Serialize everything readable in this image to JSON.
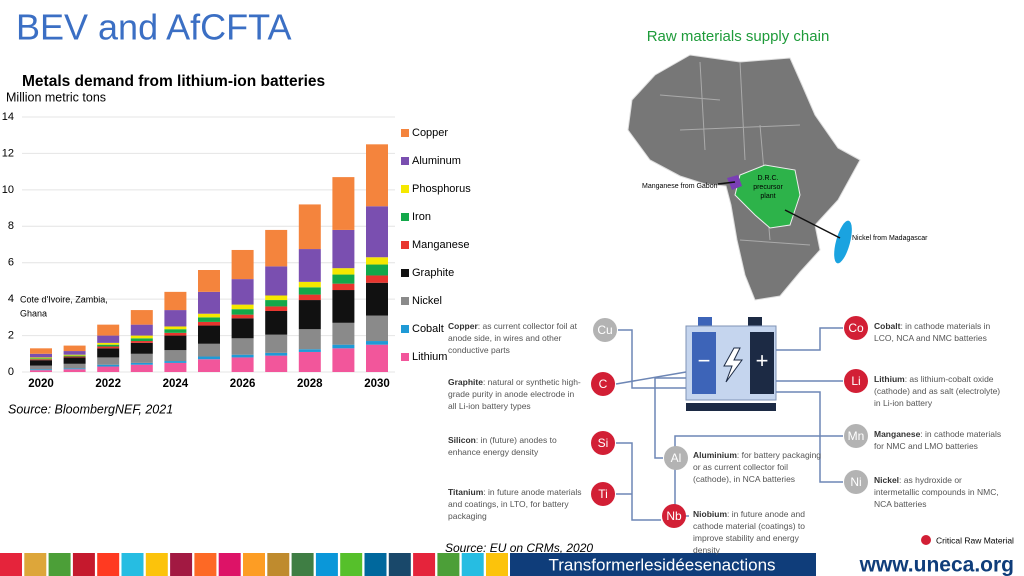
{
  "header": {
    "title": "BEV and AfCFTA",
    "subtitle": "Raw materials supply chain"
  },
  "chart_data": {
    "type": "bar",
    "stacked": true,
    "title": "Metals demand from lithium-ion batteries",
    "y_label": "Million metric tons",
    "categories": [
      "2020",
      null,
      "2022",
      null,
      "2024",
      null,
      "2026",
      null,
      "2028",
      null,
      "2030"
    ],
    "ylim": [
      0,
      14
    ],
    "yticks": [
      0,
      2,
      4,
      6,
      8,
      10,
      12,
      14
    ],
    "grid": true,
    "series": [
      {
        "name": "Lithium",
        "color": "#f2569b",
        "values": [
          0.1,
          0.15,
          0.3,
          0.4,
          0.5,
          0.7,
          0.8,
          0.9,
          1.1,
          1.3,
          1.5
        ]
      },
      {
        "name": "Cobalt",
        "color": "#1f9ad6",
        "values": [
          0.05,
          0.05,
          0.1,
          0.1,
          0.1,
          0.15,
          0.15,
          0.15,
          0.15,
          0.2,
          0.2
        ]
      },
      {
        "name": "Nickel",
        "color": "#8a8a8a",
        "values": [
          0.2,
          0.25,
          0.4,
          0.5,
          0.6,
          0.7,
          0.9,
          1.0,
          1.1,
          1.2,
          1.4
        ]
      },
      {
        "name": "Graphite",
        "color": "#111111",
        "values": [
          0.3,
          0.35,
          0.5,
          0.6,
          0.8,
          1.0,
          1.1,
          1.3,
          1.6,
          1.8,
          1.8
        ]
      },
      {
        "name": "Manganese",
        "color": "#e8352e",
        "values": [
          0.05,
          0.05,
          0.1,
          0.1,
          0.15,
          0.2,
          0.2,
          0.25,
          0.3,
          0.35,
          0.4
        ]
      },
      {
        "name": "Iron",
        "color": "#13a84a",
        "values": [
          0.05,
          0.05,
          0.1,
          0.15,
          0.2,
          0.25,
          0.3,
          0.35,
          0.4,
          0.5,
          0.6
        ]
      },
      {
        "name": "Phosphorus",
        "color": "#f5e800",
        "values": [
          0.05,
          0.05,
          0.1,
          0.15,
          0.15,
          0.2,
          0.25,
          0.25,
          0.3,
          0.35,
          0.4
        ]
      },
      {
        "name": "Aluminum",
        "color": "#7a4fb0",
        "values": [
          0.2,
          0.2,
          0.4,
          0.6,
          0.9,
          1.2,
          1.4,
          1.6,
          1.8,
          2.1,
          2.8
        ]
      },
      {
        "name": "Copper",
        "color": "#f4843d",
        "values": [
          0.3,
          0.3,
          0.6,
          0.8,
          1.0,
          1.2,
          1.6,
          2.0,
          2.45,
          2.9,
          3.4
        ]
      }
    ],
    "annotation": [
      "Cote d'Ivoire, Zambia,",
      "Ghana"
    ],
    "source": "Source: BloombergNEF, 2021"
  },
  "map": {
    "labels": [
      "Manganese from Gabon",
      "D.R.C. precursor plant",
      "Nickel from Madagascar"
    ]
  },
  "diagram": {
    "elements": [
      {
        "symbol": "Cu",
        "critical": false,
        "name": "Copper",
        "text": ": as current collector foil at anode side, in wires and other conductive parts"
      },
      {
        "symbol": "C",
        "critical": true,
        "name": "Graphite",
        "text": ": natural or synthetic high-grade purity in anode electrode in all Li-ion battery types"
      },
      {
        "symbol": "Si",
        "critical": true,
        "name": "Silicon",
        "text": ": in (future) anodes to enhance energy density"
      },
      {
        "symbol": "Ti",
        "critical": true,
        "name": "Titanium",
        "text": ": in future anode materials and coatings, in LTO, for battery packaging"
      },
      {
        "symbol": "Al",
        "critical": false,
        "name": "Aluminium",
        "text": ": for battery packaging or as current collector foil (cathode), in NCA batteries"
      },
      {
        "symbol": "Nb",
        "critical": true,
        "name": "Niobium",
        "text": ": in future anode and cathode material (coatings) to improve stability and energy density"
      },
      {
        "symbol": "Co",
        "critical": true,
        "name": "Cobalt",
        "text": ": in cathode materials in LCO, NCA and NMC batteries"
      },
      {
        "symbol": "Li",
        "critical": true,
        "name": "Lithium",
        "text": ": as lithium-cobalt oxide (cathode) and as salt (electrolyte) in Li-ion battery"
      },
      {
        "symbol": "Mn",
        "critical": false,
        "name": "Manganese",
        "text": ": in cathode materials for NMC and LMO batteries"
      },
      {
        "symbol": "Ni",
        "critical": false,
        "name": "Nickel",
        "text": ": as hydroxide or intermetallic compounds in NMC, NCA batteries"
      }
    ],
    "legend": "Critical Raw Material",
    "source": "Source: EU on CRMs, 2020"
  },
  "footer": {
    "slogan": "Transformerlesidéesenactions",
    "url": "www.uneca.org"
  }
}
